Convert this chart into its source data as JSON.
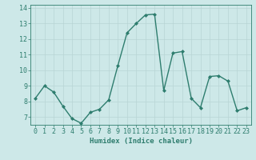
{
  "x": [
    0,
    1,
    2,
    3,
    4,
    5,
    6,
    7,
    8,
    9,
    10,
    11,
    12,
    13,
    14,
    15,
    16,
    17,
    18,
    19,
    20,
    21,
    22,
    23
  ],
  "y": [
    8.2,
    9.0,
    8.6,
    7.7,
    6.9,
    6.6,
    7.3,
    7.5,
    8.1,
    10.3,
    12.4,
    13.0,
    13.55,
    13.6,
    8.7,
    11.1,
    11.2,
    8.2,
    7.6,
    9.6,
    9.65,
    9.3,
    7.4,
    7.6
  ],
  "line_color": "#2e7d6e",
  "marker": "D",
  "markersize": 2.0,
  "linewidth": 1.0,
  "bg_color": "#cde8e8",
  "grid_color": "#b8d4d4",
  "xlabel": "Humidex (Indice chaleur)",
  "xlabel_fontsize": 6.5,
  "tick_fontsize": 6.0,
  "ylim": [
    6.5,
    14.2
  ],
  "xlim": [
    -0.5,
    23.5
  ],
  "yticks": [
    7,
    8,
    9,
    10,
    11,
    12,
    13,
    14
  ],
  "xticks": [
    0,
    1,
    2,
    3,
    4,
    5,
    6,
    7,
    8,
    9,
    10,
    11,
    12,
    13,
    14,
    15,
    16,
    17,
    18,
    19,
    20,
    21,
    22,
    23
  ],
  "xtick_labels": [
    "0",
    "1",
    "2",
    "3",
    "4",
    "5",
    "6",
    "7",
    "8",
    "9",
    "10",
    "11",
    "12",
    "13",
    "14",
    "15",
    "16",
    "17",
    "18",
    "19",
    "20",
    "21",
    "22",
    "23"
  ]
}
